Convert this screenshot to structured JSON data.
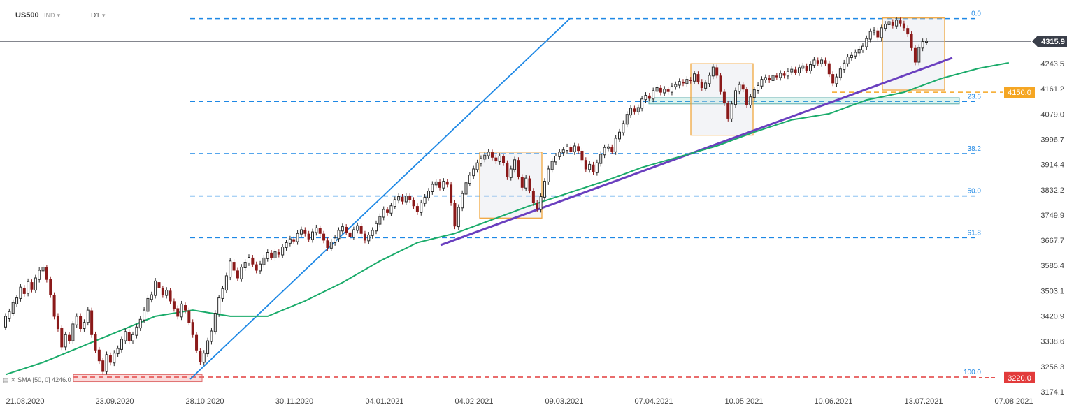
{
  "header": {
    "symbol": "US500",
    "type": "IND",
    "interval": "D1"
  },
  "indicator_label": "SMA [50, 0] 4246.0",
  "chart_data": {
    "type": "candlestick",
    "instrument": "US500",
    "timeframe": "D1",
    "x_tick_labels": [
      "21.08.2020",
      "23.09.2020",
      "28.10.2020",
      "30.11.2020",
      "04.01.2021",
      "04.02.2021",
      "09.03.2021",
      "07.04.2021",
      "10.05.2021",
      "10.06.2021",
      "13.07.2021",
      "07.08.2021"
    ],
    "y_tick_labels": [
      "4243.5",
      "4161.2",
      "4079.0",
      "3996.7",
      "3914.4",
      "3832.2",
      "3749.9",
      "3667.7",
      "3585.4",
      "3503.1",
      "3420.9",
      "3338.6",
      "3256.3",
      "3174.1"
    ],
    "ylim": [
      3174.1,
      4394
    ],
    "price_tags": [
      {
        "label": "4315.9",
        "value": 4315.9,
        "color": "#3a3f4a"
      },
      {
        "label": "4150.0",
        "value": 4150.0,
        "color": "#f5a623"
      },
      {
        "label": "3220.0",
        "value": 3220.0,
        "color": "#e23b3b"
      }
    ],
    "fibonacci_levels": [
      {
        "label": "0.0",
        "value": 4390
      },
      {
        "label": "23.6",
        "value": 4120
      },
      {
        "label": "38.2",
        "value": 3950
      },
      {
        "label": "50.0",
        "value": 3812
      },
      {
        "label": "61.8",
        "value": 3676
      },
      {
        "label": "100.0",
        "value": 3222
      }
    ],
    "overlay_colors": {
      "candle_up": "#2a2a2a",
      "candle_down": "#8b1a1a",
      "sma": "#1aab6a",
      "fib": "#1e88e5",
      "trendline": "#6a3fbf",
      "box": "#f0a030",
      "support_line": "#f5a623",
      "resistance_line": "#e23b3b"
    },
    "sma": [
      3230,
      3270,
      3320,
      3370,
      3420,
      3440,
      3420,
      3420,
      3470,
      3530,
      3600,
      3660,
      3690,
      3735,
      3780,
      3820,
      3860,
      3905,
      3940,
      3975,
      4020,
      4060,
      4080,
      4125,
      4150,
      4195,
      4228,
      4246
    ],
    "sma_indices": [
      0,
      10,
      20,
      30,
      40,
      50,
      60,
      70,
      80,
      90,
      100,
      110,
      120,
      130,
      140,
      150,
      160,
      170,
      180,
      190,
      200,
      210,
      220,
      230,
      240,
      250,
      260,
      268
    ],
    "candles": [
      [
        3385,
        3420
      ],
      [
        3412,
        3435
      ],
      [
        3430,
        3465
      ],
      [
        3460,
        3480
      ],
      [
        3478,
        3515
      ],
      [
        3512,
        3494
      ],
      [
        3495,
        3533
      ],
      [
        3530,
        3508
      ],
      [
        3505,
        3545
      ],
      [
        3540,
        3570
      ],
      [
        3568,
        3580
      ],
      [
        3578,
        3540
      ],
      [
        3540,
        3490
      ],
      [
        3488,
        3420
      ],
      [
        3420,
        3380
      ],
      [
        3380,
        3320
      ],
      [
        3320,
        3360
      ],
      [
        3358,
        3340
      ],
      [
        3340,
        3395
      ],
      [
        3392,
        3420
      ],
      [
        3420,
        3380
      ],
      [
        3380,
        3400
      ],
      [
        3400,
        3440
      ],
      [
        3438,
        3360
      ],
      [
        3360,
        3310
      ],
      [
        3310,
        3275
      ],
      [
        3275,
        3240
      ],
      [
        3240,
        3295
      ],
      [
        3292,
        3270
      ],
      [
        3268,
        3300
      ],
      [
        3298,
        3315
      ],
      [
        3312,
        3345
      ],
      [
        3340,
        3370
      ],
      [
        3368,
        3340
      ],
      [
        3340,
        3360
      ],
      [
        3358,
        3385
      ],
      [
        3382,
        3410
      ],
      [
        3408,
        3440
      ],
      [
        3436,
        3478
      ],
      [
        3475,
        3490
      ],
      [
        3488,
        3535
      ],
      [
        3530,
        3512
      ],
      [
        3510,
        3490
      ],
      [
        3488,
        3505
      ],
      [
        3502,
        3470
      ],
      [
        3468,
        3445
      ],
      [
        3445,
        3420
      ],
      [
        3418,
        3460
      ],
      [
        3455,
        3440
      ],
      [
        3438,
        3400
      ],
      [
        3400,
        3360
      ],
      [
        3358,
        3310
      ],
      [
        3305,
        3272
      ],
      [
        3270,
        3300
      ],
      [
        3298,
        3340
      ],
      [
        3338,
        3372
      ],
      [
        3370,
        3430
      ],
      [
        3428,
        3480
      ],
      [
        3478,
        3510
      ],
      [
        3505,
        3552
      ],
      [
        3548,
        3600
      ],
      [
        3596,
        3570
      ],
      [
        3568,
        3545
      ],
      [
        3542,
        3580
      ],
      [
        3578,
        3596
      ],
      [
        3594,
        3612
      ],
      [
        3610,
        3590
      ],
      [
        3588,
        3570
      ],
      [
        3568,
        3590
      ],
      [
        3588,
        3610
      ],
      [
        3608,
        3628
      ],
      [
        3626,
        3612
      ],
      [
        3610,
        3630
      ],
      [
        3628,
        3622
      ],
      [
        3620,
        3646
      ],
      [
        3644,
        3660
      ],
      [
        3658,
        3672
      ],
      [
        3670,
        3665
      ],
      [
        3663,
        3690
      ],
      [
        3688,
        3702
      ],
      [
        3700,
        3690
      ],
      [
        3688,
        3672
      ],
      [
        3670,
        3695
      ],
      [
        3693,
        3708
      ],
      [
        3706,
        3690
      ],
      [
        3688,
        3668
      ],
      [
        3666,
        3644
      ],
      [
        3642,
        3662
      ],
      [
        3660,
        3675
      ],
      [
        3673,
        3700
      ],
      [
        3698,
        3712
      ],
      [
        3710,
        3694
      ],
      [
        3692,
        3680
      ],
      [
        3678,
        3702
      ],
      [
        3700,
        3715
      ],
      [
        3713,
        3690
      ],
      [
        3688,
        3668
      ],
      [
        3666,
        3685
      ],
      [
        3683,
        3700
      ],
      [
        3698,
        3722
      ],
      [
        3720,
        3745
      ],
      [
        3743,
        3768
      ],
      [
        3766,
        3758
      ],
      [
        3756,
        3780
      ],
      [
        3778,
        3800
      ],
      [
        3798,
        3810
      ],
      [
        3808,
        3795
      ],
      [
        3793,
        3812
      ],
      [
        3810,
        3800
      ],
      [
        3798,
        3780
      ],
      [
        3778,
        3760
      ],
      [
        3758,
        3790
      ],
      [
        3788,
        3808
      ],
      [
        3806,
        3828
      ],
      [
        3826,
        3850
      ],
      [
        3848,
        3858
      ],
      [
        3856,
        3840
      ],
      [
        3838,
        3860
      ],
      [
        3858,
        3850
      ],
      [
        3848,
        3790
      ],
      [
        3788,
        3714
      ],
      [
        3712,
        3775
      ],
      [
        3773,
        3820
      ],
      [
        3818,
        3855
      ],
      [
        3853,
        3880
      ],
      [
        3878,
        3900
      ],
      [
        3898,
        3920
      ],
      [
        3918,
        3934
      ],
      [
        3932,
        3945
      ],
      [
        3943,
        3955
      ],
      [
        3953,
        3938
      ],
      [
        3936,
        3926
      ],
      [
        3924,
        3942
      ],
      [
        3940,
        3920
      ],
      [
        3918,
        3874
      ],
      [
        3872,
        3900
      ],
      [
        3898,
        3930
      ],
      [
        3928,
        3875
      ],
      [
        3873,
        3840
      ],
      [
        3838,
        3870
      ],
      [
        3868,
        3830
      ],
      [
        3828,
        3790
      ],
      [
        3788,
        3770
      ],
      [
        3768,
        3810
      ],
      [
        3808,
        3860
      ],
      [
        3858,
        3900
      ],
      [
        3898,
        3925
      ],
      [
        3923,
        3942
      ],
      [
        3940,
        3955
      ],
      [
        3953,
        3962
      ],
      [
        3960,
        3972
      ],
      [
        3970,
        3958
      ],
      [
        3956,
        3975
      ],
      [
        3973,
        3960
      ],
      [
        3958,
        3930
      ],
      [
        3928,
        3900
      ],
      [
        3898,
        3915
      ],
      [
        3913,
        3890
      ],
      [
        3888,
        3920
      ],
      [
        3918,
        3948
      ],
      [
        3946,
        3970
      ],
      [
        3968,
        3972
      ],
      [
        3970,
        3958
      ],
      [
        3956,
        4000
      ],
      [
        3998,
        4020
      ],
      [
        4018,
        4048
      ],
      [
        4046,
        4078
      ],
      [
        4076,
        4098
      ],
      [
        4096,
        4088
      ],
      [
        4086,
        4100
      ],
      [
        4098,
        4128
      ],
      [
        4126,
        4140
      ],
      [
        4138,
        4130
      ],
      [
        4128,
        4155
      ],
      [
        4153,
        4165
      ],
      [
        4163,
        4150
      ],
      [
        4148,
        4160
      ],
      [
        4158,
        4152
      ],
      [
        4150,
        4170
      ],
      [
        4168,
        4175
      ],
      [
        4173,
        4185
      ],
      [
        4183,
        4180
      ],
      [
        4178,
        4192
      ],
      [
        4190,
        4188
      ],
      [
        4186,
        4210
      ],
      [
        4208,
        4185
      ],
      [
        4183,
        4165
      ],
      [
        4163,
        4180
      ],
      [
        4178,
        4205
      ],
      [
        4203,
        4232
      ],
      [
        4230,
        4205
      ],
      [
        4203,
        4152
      ],
      [
        4150,
        4115
      ],
      [
        4113,
        4065
      ],
      [
        4063,
        4112
      ],
      [
        4110,
        4155
      ],
      [
        4153,
        4175
      ],
      [
        4173,
        4160
      ],
      [
        4158,
        4110
      ],
      [
        4108,
        4135
      ],
      [
        4133,
        4158
      ],
      [
        4156,
        4172
      ],
      [
        4170,
        4192
      ],
      [
        4190,
        4198
      ],
      [
        4196,
        4190
      ],
      [
        4188,
        4205
      ],
      [
        4203,
        4200
      ],
      [
        4198,
        4212
      ],
      [
        4210,
        4205
      ],
      [
        4203,
        4218
      ],
      [
        4216,
        4225
      ],
      [
        4223,
        4215
      ],
      [
        4213,
        4230
      ],
      [
        4228,
        4236
      ],
      [
        4234,
        4222
      ],
      [
        4220,
        4240
      ],
      [
        4238,
        4255
      ],
      [
        4253,
        4245
      ],
      [
        4243,
        4255
      ],
      [
        4253,
        4245
      ],
      [
        4243,
        4210
      ],
      [
        4208,
        4180
      ],
      [
        4178,
        4200
      ],
      [
        4198,
        4226
      ],
      [
        4224,
        4245
      ],
      [
        4243,
        4265
      ],
      [
        4263,
        4270
      ],
      [
        4268,
        4280
      ],
      [
        4278,
        4290
      ],
      [
        4288,
        4300
      ],
      [
        4298,
        4325
      ],
      [
        4323,
        4348
      ],
      [
        4346,
        4352
      ],
      [
        4350,
        4330
      ],
      [
        4328,
        4360
      ],
      [
        4358,
        4372
      ],
      [
        4370,
        4380
      ],
      [
        4378,
        4368
      ],
      [
        4366,
        4385
      ],
      [
        4383,
        4375
      ],
      [
        4373,
        4360
      ],
      [
        4358,
        4340
      ],
      [
        4338,
        4295
      ],
      [
        4293,
        4248
      ],
      [
        4248,
        4296
      ],
      [
        4294,
        4315
      ],
      [
        4313,
        4316
      ]
    ]
  }
}
